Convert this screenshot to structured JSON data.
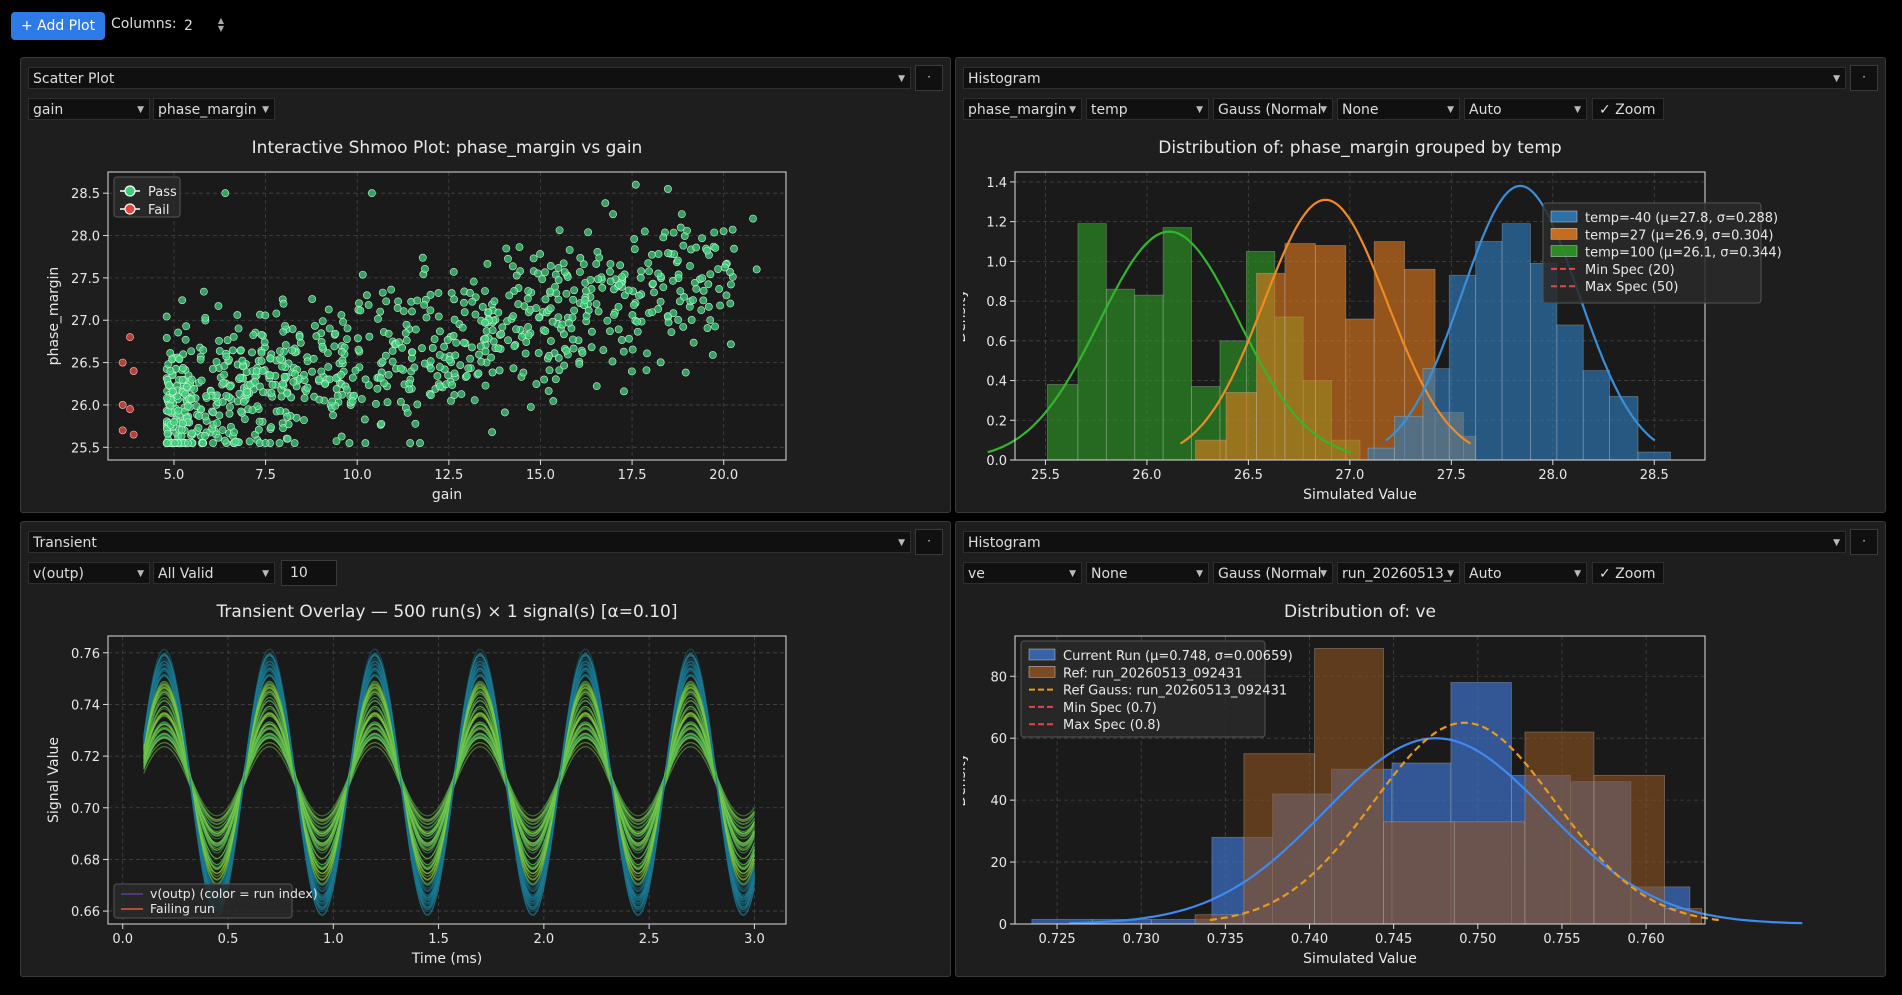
{
  "toolbar": {
    "add_plot_label": "+ Add Plot",
    "columns_label": "Columns:",
    "columns_value": "2"
  },
  "panels": [
    {
      "plot_type": "Scatter Plot",
      "controls": [
        "gain",
        "phase_margin"
      ],
      "chart_data": {
        "type": "scatter",
        "title": "Interactive Shmoo Plot: phase_margin vs gain",
        "xlabel": "gain",
        "ylabel": "phase_margin",
        "xlim": [
          3.2,
          21.7
        ],
        "ylim": [
          25.35,
          28.75
        ],
        "xticks": [
          "5.0",
          "7.5",
          "10.0",
          "12.5",
          "15.0",
          "17.5",
          "20.0"
        ],
        "yticks": [
          "25.5",
          "26.0",
          "26.5",
          "27.0",
          "27.5",
          "28.0",
          "28.5"
        ],
        "legend": {
          "position": "top-left",
          "entries": [
            "Pass",
            "Fail"
          ]
        },
        "series": [
          {
            "name": "Pass",
            "color": "#3ecf7a",
            "count": 900,
            "points_sample": [
              [
                6.4,
                28.5
              ],
              [
                10.4,
                28.5
              ],
              [
                17.6,
                28.6
              ],
              [
                20.8,
                28.2
              ],
              [
                20.9,
                27.6
              ],
              [
                4.9,
                26.4
              ],
              [
                5.0,
                25.8
              ],
              [
                8.1,
                25.6
              ],
              [
                12.0,
                27.3
              ],
              [
                15.1,
                26.3
              ]
            ]
          },
          {
            "name": "Fail",
            "color": "#e0483f",
            "points": [
              [
                3.8,
                26.8
              ],
              [
                3.6,
                26.5
              ],
              [
                3.9,
                26.4
              ],
              [
                3.6,
                26.0
              ],
              [
                3.8,
                25.95
              ],
              [
                3.6,
                25.7
              ],
              [
                3.9,
                25.65
              ]
            ]
          }
        ],
        "grid": true
      }
    },
    {
      "plot_type": "Histogram",
      "controls": [
        "phase_margin",
        "temp",
        "Gauss (Normal",
        "None",
        "Auto"
      ],
      "zoom_label": "✓ Zoom",
      "chart_data": {
        "type": "bar",
        "title": "Distribution of: phase_margin grouped by temp",
        "xlabel": "Simulated Value",
        "ylabel": "Density",
        "xlim": [
          25.35,
          28.75
        ],
        "ylim": [
          0,
          1.45
        ],
        "xticks": [
          "25.5",
          "26.0",
          "26.5",
          "27.0",
          "27.5",
          "28.0",
          "28.5"
        ],
        "yticks": [
          "0.0",
          "0.2",
          "0.4",
          "0.6",
          "0.8",
          "1.0",
          "1.2",
          "1.4"
        ],
        "legend": {
          "position": "right",
          "entries": [
            "temp=-40 (μ=27.8, σ=0.288)",
            "temp=27 (μ=26.9, σ=0.304)",
            "temp=100 (μ=26.1, σ=0.344)",
            "Min Spec (20)",
            "Max Spec (50)"
          ]
        },
        "series": [
          {
            "name": "temp=-40 (μ=27.8, σ=0.288)",
            "color": "#2f7fc1",
            "mu": 27.84,
            "sigma": 0.288,
            "peak": 1.38,
            "bins": [
              [
                27.09,
                27.22,
                0.06
              ],
              [
                27.22,
                27.36,
                0.22
              ],
              [
                27.36,
                27.49,
                0.46
              ],
              [
                27.49,
                27.62,
                0.93
              ],
              [
                27.62,
                27.75,
                1.1
              ],
              [
                27.75,
                27.89,
                1.19
              ],
              [
                27.89,
                28.02,
                0.99
              ],
              [
                28.02,
                28.15,
                0.68
              ],
              [
                28.15,
                28.28,
                0.45
              ],
              [
                28.28,
                28.42,
                0.32
              ],
              [
                28.42,
                28.58,
                0.04
              ]
            ]
          },
          {
            "name": "temp=27 (μ=26.9, σ=0.304)",
            "color": "#e07a1e",
            "mu": 26.88,
            "sigma": 0.304,
            "peak": 1.31,
            "bins": [
              [
                26.24,
                26.39,
                0.1
              ],
              [
                26.39,
                26.54,
                0.34
              ],
              [
                26.54,
                26.68,
                0.94
              ],
              [
                26.68,
                26.83,
                1.09
              ],
              [
                26.83,
                26.98,
                1.08
              ],
              [
                26.98,
                27.12,
                0.71
              ],
              [
                27.12,
                27.27,
                1.1
              ],
              [
                27.27,
                27.42,
                0.96
              ],
              [
                27.42,
                27.56,
                0.24
              ],
              [
                27.56,
                27.62,
                0.12
              ]
            ]
          },
          {
            "name": "temp=100 (μ=26.1, σ=0.344)",
            "color": "#2f9d27",
            "mu": 26.11,
            "sigma": 0.344,
            "peak": 1.15,
            "bins": [
              [
                25.51,
                25.66,
                0.38
              ],
              [
                25.66,
                25.8,
                1.19
              ],
              [
                25.8,
                25.94,
                0.86
              ],
              [
                25.94,
                26.08,
                0.83
              ],
              [
                26.08,
                26.22,
                1.17
              ],
              [
                26.22,
                26.36,
                0.37
              ],
              [
                26.36,
                26.49,
                0.6
              ],
              [
                26.49,
                26.63,
                1.05
              ],
              [
                26.63,
                26.77,
                0.72
              ],
              [
                26.77,
                26.91,
                0.4
              ],
              [
                26.91,
                27.05,
                0.1
              ]
            ]
          }
        ],
        "grid": true
      }
    },
    {
      "plot_type": "Transient",
      "controls": [
        "v(outp)",
        "All Valid"
      ],
      "count_value": "10",
      "chart_data": {
        "type": "line",
        "title": "Transient Overlay — 500 run(s) × 1 signal(s)  [α=0.10]",
        "xlabel": "Time (ms)",
        "ylabel": "Signal Value",
        "xlim": [
          -0.07,
          3.15
        ],
        "ylim": [
          0.655,
          0.7665
        ],
        "xticks": [
          "0.0",
          "0.5",
          "1.0",
          "1.5",
          "2.0",
          "2.5",
          "3.0"
        ],
        "yticks": [
          "0.66",
          "0.68",
          "0.70",
          "0.72",
          "0.74",
          "0.76"
        ],
        "legend": {
          "position": "bottom-left",
          "entries": [
            "v(outp)  (color = run index)",
            "Failing run"
          ]
        },
        "signal": {
          "start": 0.1,
          "end": 3.0,
          "period": 0.5,
          "mean": 0.71,
          "amplitude_range": [
            0.015,
            0.05
          ]
        },
        "grid": true
      }
    },
    {
      "plot_type": "Histogram",
      "controls": [
        "ve",
        "None",
        "Gauss (Normal",
        "run_20260513_",
        "Auto"
      ],
      "zoom_label": "✓ Zoom",
      "chart_data": {
        "type": "bar",
        "title": "Distribution of: ve",
        "xlabel": "Simulated Value",
        "ylabel": "Density",
        "xlim": [
          0.7225,
          0.7635
        ],
        "ylim": [
          0,
          93
        ],
        "xticks": [
          "0.725",
          "0.730",
          "0.735",
          "0.740",
          "0.745",
          "0.750",
          "0.755",
          "0.760"
        ],
        "yticks": [
          "0",
          "20",
          "40",
          "60",
          "80"
        ],
        "legend": {
          "position": "top-left",
          "entries": [
            "Current Run (μ=0.748, σ=0.00659)",
            "Ref: run_20260513_092431",
            "Ref Gauss: run_20260513_092431",
            "Min Spec (0.7)",
            "Max Spec (0.8)"
          ]
        },
        "series": [
          {
            "name": "Current Run (μ=0.748, σ=0.00659)",
            "color": "#3b6fc4",
            "mu": 0.7475,
            "sigma": 0.0066,
            "peak": 60,
            "bins": [
              [
                0.7235,
                0.7271,
                1.5
              ],
              [
                0.7271,
                0.7306,
                1.5
              ],
              [
                0.7306,
                0.7342,
                1.5
              ],
              [
                0.7342,
                0.7378,
                28
              ],
              [
                0.7378,
                0.7413,
                42
              ],
              [
                0.7413,
                0.7449,
                50
              ],
              [
                0.7449,
                0.7484,
                52
              ],
              [
                0.7484,
                0.752,
                78
              ],
              [
                0.752,
                0.7555,
                48
              ],
              [
                0.7555,
                0.7591,
                46
              ],
              [
                0.7591,
                0.7626,
                12
              ]
            ]
          },
          {
            "name": "Ref: run_20260513_092431",
            "color": "#8c5222",
            "mu": 0.7492,
            "sigma": 0.0054,
            "peak": 65,
            "bins": [
              [
                0.7332,
                0.7361,
                3
              ],
              [
                0.7361,
                0.7403,
                55
              ],
              [
                0.7403,
                0.7444,
                89
              ],
              [
                0.7444,
                0.7486,
                33
              ],
              [
                0.7486,
                0.7528,
                33
              ],
              [
                0.7528,
                0.7569,
                62
              ],
              [
                0.7569,
                0.7611,
                48
              ],
              [
                0.7611,
                0.7633,
                5
              ]
            ]
          }
        ],
        "grid": true
      }
    }
  ]
}
